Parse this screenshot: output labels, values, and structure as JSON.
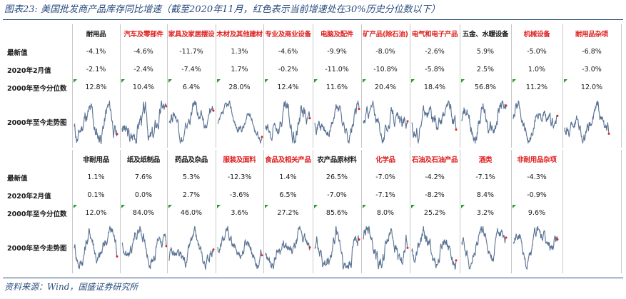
{
  "title": "图表23:  美国批发商产品库存同比增速（截至2020年11月，红色表示当前增速处在30%历史分位数以下）",
  "source": "资料来源：Wind，国盛证券研究所",
  "colors": {
    "red": "#e02020",
    "line": "#5a7394",
    "title": "#2a4d7f"
  },
  "row_labels": {
    "latest": "最新值",
    "feb2020": "2020年2月值",
    "pct": "2000年至今分位数",
    "trend": "2000年至今走势图"
  },
  "chart_data": [
    {
      "type": "table",
      "group_label": "耐用品",
      "columns": [
        {
          "name": "汽车及零部件",
          "red": true,
          "latest": "-4.6%",
          "feb2020": "-2.4%",
          "pct": "10.4%"
        },
        {
          "name": "家具及家居摆设",
          "red": true,
          "latest": "-11.7%",
          "feb2020": "-7.4%",
          "pct": "6.4%"
        },
        {
          "name": "木材及其他建材",
          "red": true,
          "latest": "1.3%",
          "feb2020": "1.7%",
          "pct": "28.0%"
        },
        {
          "name": "专业及商业设备",
          "red": true,
          "latest": "-4.6%",
          "feb2020": "-0.2%",
          "pct": "12.4%"
        },
        {
          "name": "电脑及配件",
          "red": true,
          "latest": "-9.9%",
          "feb2020": "-11.0%",
          "pct": "11.6%"
        },
        {
          "name": "矿产品(除石油)",
          "red": true,
          "latest": "-8.0%",
          "feb2020": "-10.8%",
          "pct": "20.4%"
        },
        {
          "name": "电气和电子产品",
          "red": true,
          "latest": "-2.6%",
          "feb2020": "-5.8%",
          "pct": "18.4%"
        },
        {
          "name": "五金、水暖设备",
          "red": false,
          "latest": "5.9%",
          "feb2020": "2.5%",
          "pct": "56.8%"
        },
        {
          "name": "机械设备",
          "red": true,
          "latest": "-5.0%",
          "feb2020": "1.0%",
          "pct": "11.2%"
        },
        {
          "name": "耐用品杂项",
          "red": true,
          "latest": "-6.8%",
          "feb2020": "-3.0%",
          "pct": "12.0%"
        }
      ],
      "group_values": {
        "latest": "-4.1%",
        "feb2020": "-2.1%",
        "pct": "12.8%"
      }
    },
    {
      "type": "table",
      "group_label": "非耐用品",
      "columns": [
        {
          "name": "纸及纸制品",
          "red": false,
          "latest": "7.6%",
          "feb2020": "0.0%",
          "pct": "84.0%"
        },
        {
          "name": "药品及杂品",
          "red": false,
          "latest": "5.3%",
          "feb2020": "2.7%",
          "pct": "46.0%"
        },
        {
          "name": "服装及面料",
          "red": true,
          "latest": "-12.3%",
          "feb2020": "-3.6%",
          "pct": "3.6%"
        },
        {
          "name": "食品及相关产品",
          "red": true,
          "latest": "1.4%",
          "feb2020": "6.5%",
          "pct": "27.2%"
        },
        {
          "name": "农产品原材料",
          "red": false,
          "latest": "26.5%",
          "feb2020": "-7.0%",
          "pct": "85.6%"
        },
        {
          "name": "化学品",
          "red": true,
          "latest": "-7.0%",
          "feb2020": "-7.1%",
          "pct": "8.0%"
        },
        {
          "name": "石油及石油产品",
          "red": true,
          "latest": "-4.2%",
          "feb2020": "-8.2%",
          "pct": "25.2%"
        },
        {
          "name": "酒类",
          "red": true,
          "latest": "-7.1%",
          "feb2020": "8.4%",
          "pct": "3.2%"
        },
        {
          "name": "非耐用品杂项",
          "red": true,
          "latest": "-4.3%",
          "feb2020": "-0.9%",
          "pct": "9.6%"
        }
      ],
      "group_values": {
        "latest": "1.1%",
        "feb2020": "0.1%",
        "pct": "12.0%"
      }
    }
  ]
}
